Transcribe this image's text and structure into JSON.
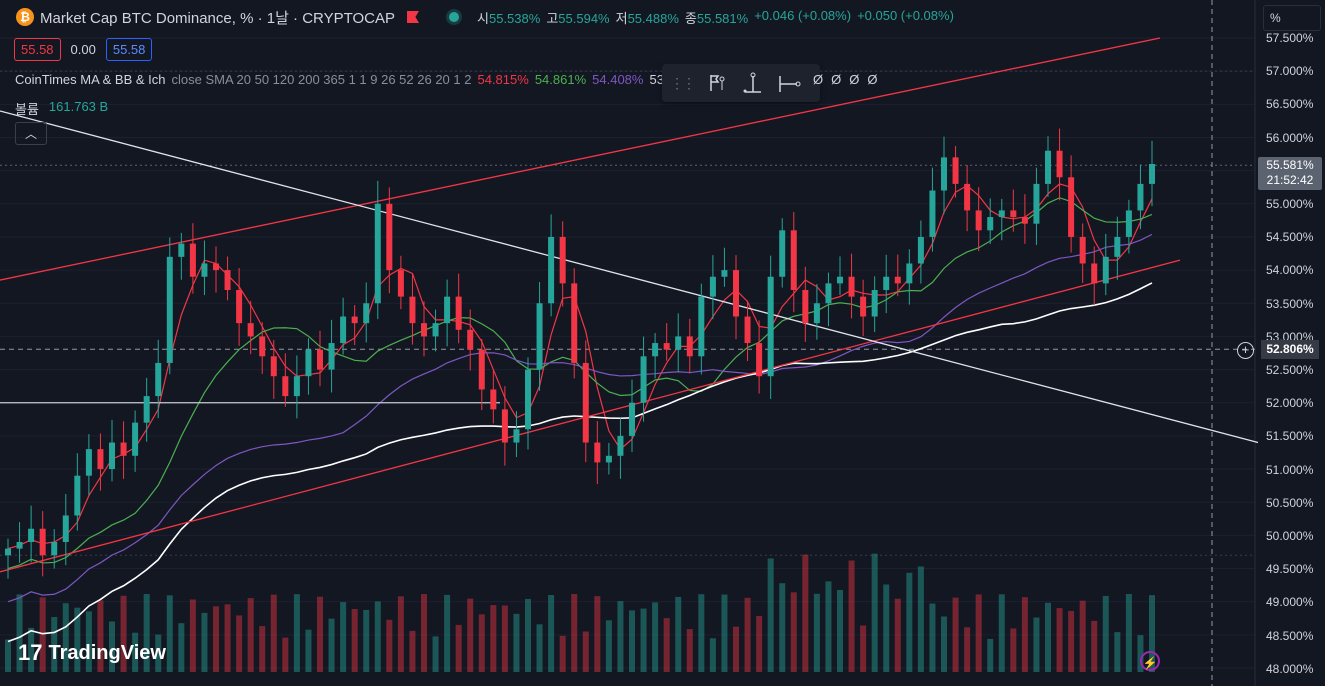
{
  "header": {
    "coin_symbol": "₿",
    "title": "Market Cap BTC Dominance, % · 1날 · CRYPTOCAP",
    "ohlc": [
      {
        "key": "시",
        "value": "55.538%"
      },
      {
        "key": "고",
        "value": "55.594%"
      },
      {
        "key": "저",
        "value": "55.488%"
      },
      {
        "key": "종",
        "value": "55.581%"
      },
      {
        "key": "",
        "value": "+0.046 (+0.08%)"
      },
      {
        "key": "",
        "value": "+0.050 (+0.08%)"
      }
    ]
  },
  "prices": {
    "sell": "55.58",
    "spread": "0.00",
    "buy": "55.58"
  },
  "indicator": {
    "name": "CoinTimes MA & BB & Ich",
    "params": "close SMA 20 50 120 200 365 1 1 9 26 52 26 20 1 2",
    "values": [
      {
        "v": "54.815%",
        "color": "#f23645"
      },
      {
        "v": "54.861%",
        "color": "#4caf50"
      },
      {
        "v": "54.408%",
        "color": "#7e57c2"
      },
      {
        "v": "53",
        "color": "#d1d4dc"
      }
    ],
    "trailing_slashes": "ØØØØ"
  },
  "volume": {
    "label": "볼륨",
    "value": "161.763 B"
  },
  "collapse_icon": "chevron-up-icon",
  "drawing_toolbar": {
    "icons": [
      "grip-icon",
      "flag-pin-icon",
      "vertical-range-icon",
      "horizontal-range-icon"
    ]
  },
  "price_axis": {
    "unit_field": "%",
    "ticks": [
      "57.500%",
      "57.000%",
      "56.500%",
      "56.000%",
      "55.000%",
      "54.500%",
      "54.000%",
      "53.500%",
      "53.000%",
      "52.500%",
      "52.000%",
      "51.500%",
      "51.000%",
      "50.500%",
      "50.000%",
      "49.500%",
      "49.000%",
      "48.500%",
      "48.000%"
    ],
    "current_price": "55.581%",
    "countdown": "21:52:42",
    "crosshair_price": "52.806%"
  },
  "watermark": {
    "logo": "17",
    "text": "TradingView"
  },
  "colors": {
    "up": "#26a69a",
    "down": "#f23645",
    "ma20": "#f23645",
    "ma50": "#4caf50",
    "ma120": "#7e57c2",
    "ma200": "#ffffff"
  },
  "chart_data": {
    "type": "candlestick",
    "ylim": [
      48.0,
      57.5
    ],
    "close_series": [
      49.8,
      49.9,
      50.1,
      49.7,
      49.9,
      50.3,
      50.9,
      51.3,
      51.0,
      51.4,
      51.2,
      51.7,
      52.1,
      52.6,
      54.2,
      54.4,
      53.9,
      54.1,
      54.0,
      53.7,
      53.2,
      53.0,
      52.7,
      52.4,
      52.1,
      52.4,
      52.8,
      52.5,
      52.9,
      53.3,
      53.2,
      53.5,
      55.0,
      54.0,
      53.6,
      53.2,
      53.0,
      53.2,
      53.6,
      53.1,
      52.8,
      52.2,
      51.9,
      51.4,
      51.6,
      52.5,
      53.5,
      54.5,
      53.8,
      52.6,
      51.4,
      51.1,
      51.2,
      51.5,
      52.0,
      52.7,
      52.9,
      52.8,
      53.0,
      52.7,
      53.6,
      53.9,
      54.0,
      53.3,
      52.9,
      52.4,
      53.9,
      54.6,
      53.7,
      53.2,
      53.5,
      53.8,
      53.9,
      53.6,
      53.3,
      53.7,
      53.9,
      53.8,
      54.1,
      54.5,
      55.2,
      55.7,
      55.3,
      54.9,
      54.6,
      54.8,
      54.9,
      54.8,
      54.7,
      55.3,
      55.8,
      55.4,
      54.5,
      54.1,
      53.8,
      54.2,
      54.5,
      54.9,
      55.3,
      55.6
    ],
    "moving_averages": [
      "MA 20",
      "MA 50",
      "MA 120",
      "MA 200"
    ],
    "volume_ylim": [
      0,
      1
    ]
  }
}
